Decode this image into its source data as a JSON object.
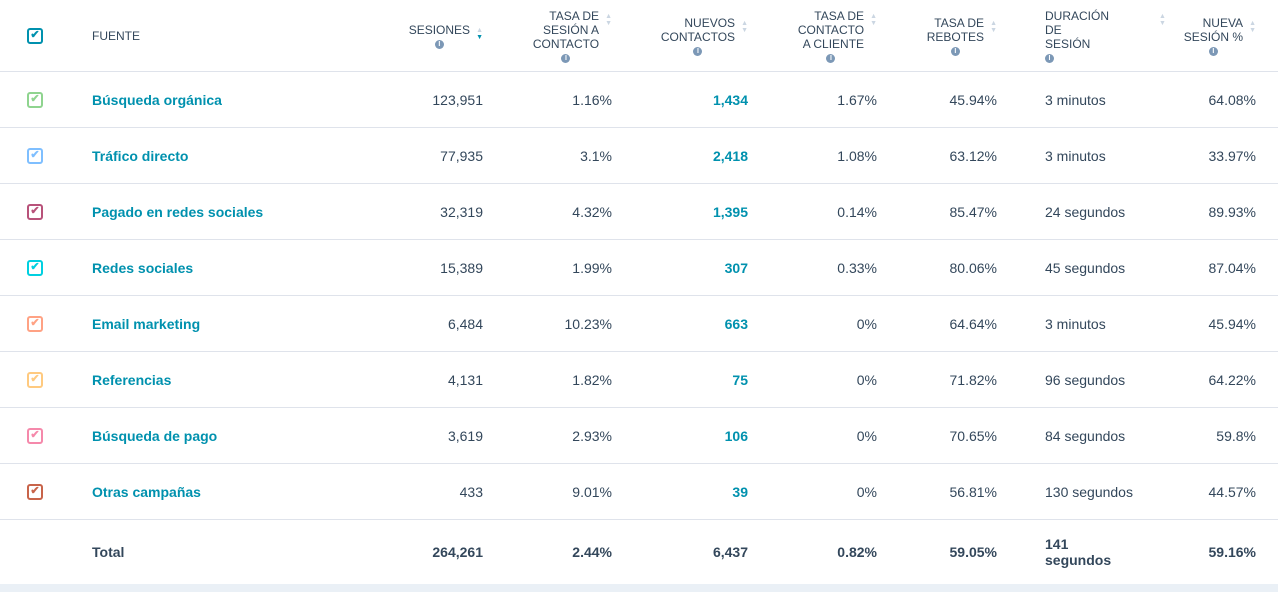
{
  "header": {
    "fuente": "Fuente",
    "columns": [
      {
        "label_lines": [
          "Sesiones"
        ],
        "sorted": "desc"
      },
      {
        "label_lines": [
          "Tasa de",
          "sesión a",
          "contacto"
        ]
      },
      {
        "label_lines": [
          "Nuevos",
          "contactos"
        ]
      },
      {
        "label_lines": [
          "Tasa de",
          "contacto",
          "a cliente"
        ]
      },
      {
        "label_lines": [
          "Tasa de",
          "rebotes"
        ]
      },
      {
        "label_lines": [
          "Duración",
          "de sesión"
        ]
      },
      {
        "label_lines": [
          "Nueva",
          "sesión %"
        ]
      }
    ]
  },
  "header_checkbox_color": "#0091ae",
  "rows": [
    {
      "source": "Búsqueda orgánica",
      "color": "#8fd48f",
      "sessions": "123,951",
      "session_to_contact": "1.16%",
      "new_contacts": "1,434",
      "contact_to_customer": "1.67%",
      "bounce": "45.94%",
      "duration": "3 minutos",
      "new_session": "64.08%"
    },
    {
      "source": "Tráfico directo",
      "color": "#7fbfff",
      "sessions": "77,935",
      "session_to_contact": "3.1%",
      "new_contacts": "2,418",
      "contact_to_customer": "1.08%",
      "bounce": "63.12%",
      "duration": "3 minutos",
      "new_session": "33.97%"
    },
    {
      "source": "Pagado en redes sociales",
      "color": "#b8527a",
      "sessions": "32,319",
      "session_to_contact": "4.32%",
      "new_contacts": "1,395",
      "contact_to_customer": "0.14%",
      "bounce": "85.47%",
      "duration": "24 segundos",
      "new_session": "89.93%"
    },
    {
      "source": "Redes sociales",
      "color": "#00d0e0",
      "sessions": "15,389",
      "session_to_contact": "1.99%",
      "new_contacts": "307",
      "contact_to_customer": "0.33%",
      "bounce": "80.06%",
      "duration": "45 segundos",
      "new_session": "87.04%"
    },
    {
      "source": "Email marketing",
      "color": "#ffa284",
      "sessions": "6,484",
      "session_to_contact": "10.23%",
      "new_contacts": "663",
      "contact_to_customer": "0%",
      "bounce": "64.64%",
      "duration": "3 minutos",
      "new_session": "45.94%"
    },
    {
      "source": "Referencias",
      "color": "#ffca80",
      "sessions": "4,131",
      "session_to_contact": "1.82%",
      "new_contacts": "75",
      "contact_to_customer": "0%",
      "bounce": "71.82%",
      "duration": "96 segundos",
      "new_session": "64.22%"
    },
    {
      "source": "Búsqueda de pago",
      "color": "#f589ab",
      "sessions": "3,619",
      "session_to_contact": "2.93%",
      "new_contacts": "106",
      "contact_to_customer": "0%",
      "bounce": "70.65%",
      "duration": "84 segundos",
      "new_session": "59.8%"
    },
    {
      "source": "Otras campañas",
      "color": "#c8644a",
      "sessions": "433",
      "session_to_contact": "9.01%",
      "new_contacts": "39",
      "contact_to_customer": "0%",
      "bounce": "56.81%",
      "duration": "130 segundos",
      "new_session": "44.57%"
    }
  ],
  "total": {
    "label": "Total",
    "sessions": "264,261",
    "session_to_contact": "2.44%",
    "new_contacts": "6,437",
    "contact_to_customer": "0.82%",
    "bounce": "59.05%",
    "duration_lines": [
      "141",
      "segundos"
    ],
    "new_session": "59.16%"
  }
}
